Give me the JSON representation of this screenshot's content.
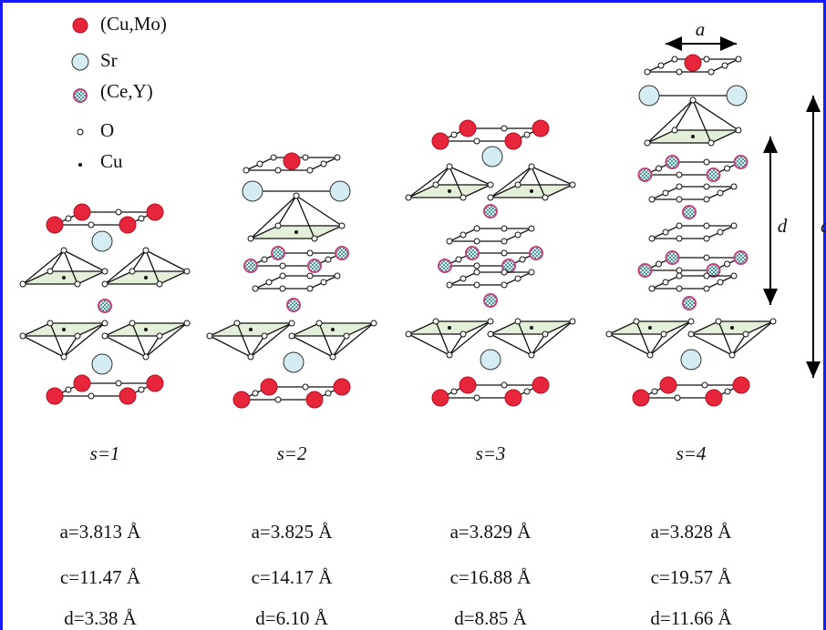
{
  "legend": [
    {
      "label": "(Cu,Mo)"
    },
    {
      "label": "Sr"
    },
    {
      "label": "(Ce,Y)"
    },
    {
      "label": "O"
    },
    {
      "label": "Cu"
    }
  ],
  "annotations": {
    "a": "a",
    "d": "d",
    "c": "c"
  },
  "columns": [
    {
      "label": "s=1",
      "a": "a=3.813 Å",
      "c": "c=11.47 Å",
      "d": "d=3.38 Å"
    },
    {
      "label": "s=2",
      "a": "a=3.825 Å",
      "c": "c=14.17 Å",
      "d": "d=6.10 Å"
    },
    {
      "label": "s=3",
      "a": "a=3.829 Å",
      "c": "c=16.88 Å",
      "d": "d=8.85 Å"
    },
    {
      "label": "s=4",
      "a": "a=3.828 Å",
      "c": "c=19.57 Å",
      "d": "d=11.66 Å"
    }
  ]
}
